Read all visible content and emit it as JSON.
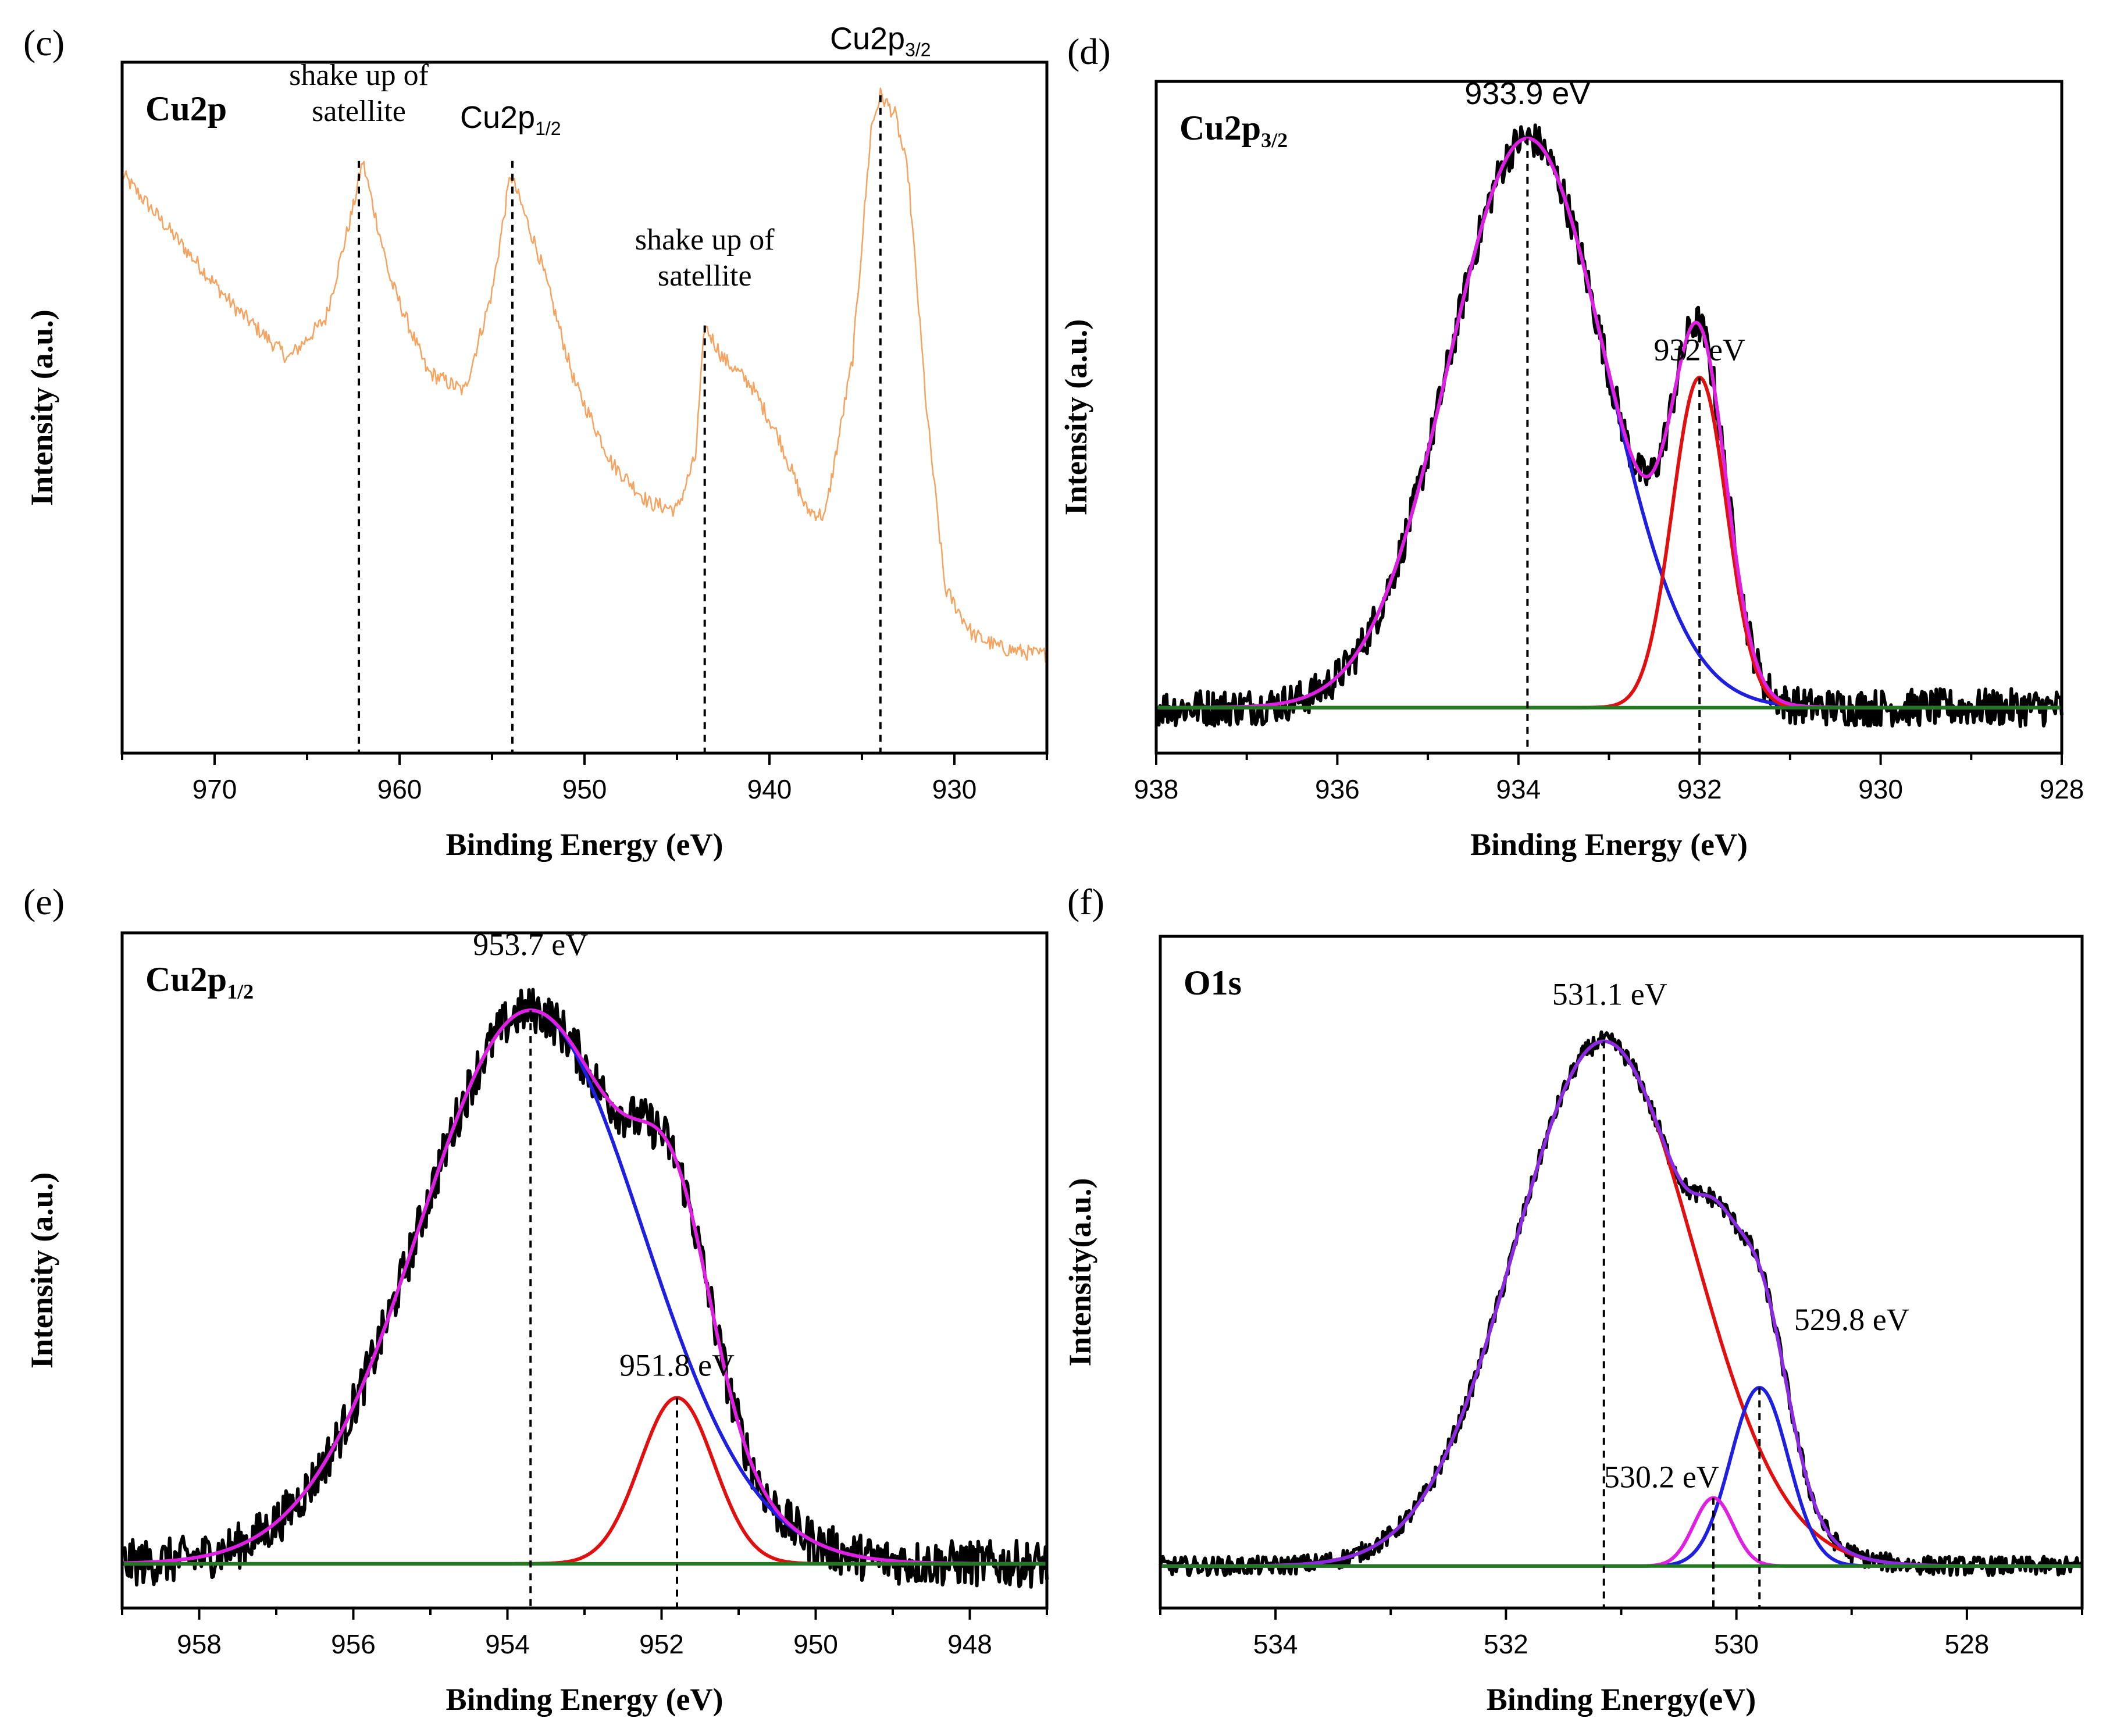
{
  "figure": {
    "panels": [
      "(c)",
      "(d)",
      "(e)",
      "(f)"
    ]
  },
  "chart_data": [
    {
      "id": "c",
      "type": "line",
      "panel_label": "(c)",
      "title": "Cu2p",
      "xlabel": "Binding Energy (eV)",
      "ylabel": "Intensity (a.u.)",
      "xlim": [
        975,
        925
      ],
      "ylim": [
        0,
        1.05
      ],
      "xticks": [
        970,
        960,
        950,
        940,
        930
      ],
      "xtick_labels": [
        "970",
        "960",
        "950",
        "940",
        "930"
      ],
      "series": [
        {
          "name": "Cu2p spectrum",
          "color": "#f4a460",
          "noise": 0.012,
          "x": [
            975,
            972,
            969,
            966,
            964,
            962.5,
            962,
            960.5,
            958.5,
            956.5,
            955,
            954,
            952.5,
            950.5,
            948.5,
            946.5,
            945,
            944,
            943.5,
            942.5,
            941,
            939.5,
            938,
            937,
            935.5,
            934.5,
            934,
            933.2,
            932.5,
            931.5,
            930.5,
            929,
            927.5,
            925.5
          ],
          "y": [
            0.88,
            0.78,
            0.68,
            0.6,
            0.66,
            0.83,
            0.9,
            0.72,
            0.58,
            0.55,
            0.7,
            0.88,
            0.76,
            0.56,
            0.44,
            0.38,
            0.37,
            0.45,
            0.65,
            0.6,
            0.56,
            0.48,
            0.37,
            0.36,
            0.6,
            0.95,
            1.0,
            0.97,
            0.88,
            0.52,
            0.25,
            0.18,
            0.16,
            0.15
          ]
        }
      ],
      "vlines": [
        {
          "x": 962.2,
          "top": 0.9
        },
        {
          "x": 953.9,
          "top": 0.9
        },
        {
          "x": 943.5,
          "top": 0.65
        },
        {
          "x": 934.0,
          "top": 1.0
        }
      ],
      "annotations": [
        {
          "lines": [
            "shake up of",
            "satellite"
          ],
          "x": 962.2,
          "y": 0.98
        },
        {
          "text": "Cu2p",
          "sub": "1/2",
          "x": 954.0,
          "y": 0.95
        },
        {
          "lines": [
            "shake up of",
            "satellite"
          ],
          "x": 943.5,
          "y": 0.73
        },
        {
          "text": "Cu2p",
          "sub": "3/2",
          "x": 934.0,
          "y": 1.07
        }
      ]
    },
    {
      "id": "d",
      "type": "line",
      "panel_label": "(d)",
      "title": "Cu2p",
      "title_sub": "3/2",
      "xlabel": "Binding Energy (eV)",
      "ylabel": "Intensity (a.u.)",
      "xlim": [
        938,
        928
      ],
      "ylim": [
        -0.08,
        1.1
      ],
      "xticks": [
        938,
        936,
        934,
        932,
        930,
        928
      ],
      "xtick_labels": [
        "938",
        "936",
        "934",
        "932",
        "930",
        "928"
      ],
      "series": [
        {
          "name": "Raw data",
          "color": "#000000",
          "noise": 0.022,
          "gauss_sum": true,
          "components": [
            [
              933.9,
              1.0,
              0.87
            ],
            [
              932.0,
              0.58,
              0.3
            ]
          ]
        },
        {
          "name": "Peak 933.9 eV",
          "color": "#1f1fe0",
          "gauss": [
            933.9,
            1.0,
            0.87
          ]
        },
        {
          "name": "Peak 932 eV",
          "color": "#e01010",
          "gauss": [
            932.0,
            0.58,
            0.3
          ]
        },
        {
          "name": "Envelope",
          "color": "#e020e0",
          "gauss_sum": true,
          "components": [
            [
              933.9,
              1.0,
              0.87
            ],
            [
              932.0,
              0.58,
              0.3
            ]
          ]
        },
        {
          "name": "Background",
          "color": "#207a20",
          "const": 0
        }
      ],
      "vlines": [
        {
          "x": 933.9,
          "top": 1.0
        },
        {
          "x": 932.0,
          "top": 0.58
        }
      ],
      "annotations": [
        {
          "text": "933.9 eV",
          "x": 933.9,
          "y": 1.06,
          "font": "sans"
        },
        {
          "text": "932 eV",
          "x": 932.0,
          "y": 0.61
        }
      ]
    },
    {
      "id": "e",
      "type": "line",
      "panel_label": "(e)",
      "title": "Cu2p",
      "title_sub": "1/2",
      "xlabel": "Binding Energy (eV)",
      "ylabel": "Intensity (a.u.)",
      "xlim": [
        959,
        947
      ],
      "ylim": [
        -0.08,
        1.14
      ],
      "xticks": [
        958,
        956,
        954,
        952,
        950,
        948
      ],
      "xtick_labels": [
        "958",
        "956",
        "954",
        "952",
        "950",
        "948"
      ],
      "series": [
        {
          "name": "Raw data",
          "color": "#000000",
          "noise": 0.028,
          "gauss_sum": true,
          "components": [
            [
              953.7,
              1.0,
              1.45
            ],
            [
              951.8,
              0.3,
              0.48
            ]
          ]
        },
        {
          "name": "Peak 953.7 eV",
          "color": "#1f1fe0",
          "gauss": [
            953.7,
            1.0,
            1.45
          ]
        },
        {
          "name": "Peak 951.8 eV",
          "color": "#e01010",
          "gauss": [
            951.8,
            0.3,
            0.48
          ]
        },
        {
          "name": "Envelope",
          "color": "#e020e0",
          "gauss_sum": true,
          "components": [
            [
              953.7,
              1.0,
              1.45
            ],
            [
              951.8,
              0.3,
              0.48
            ]
          ]
        },
        {
          "name": "Background",
          "color": "#207a20",
          "const": 0
        }
      ],
      "vlines": [
        {
          "x": 953.7,
          "top": 1.0
        },
        {
          "x": 951.8,
          "top": 0.3
        }
      ],
      "annotations": [
        {
          "text": "953.7 eV",
          "x": 953.7,
          "y": 1.1
        },
        {
          "text": "951.8 eV",
          "x": 951.8,
          "y": 0.34
        }
      ]
    },
    {
      "id": "f",
      "type": "line",
      "panel_label": "(f)",
      "title": "O1s",
      "xlabel": "Binding Energy(eV)",
      "ylabel": "Intensity(a.u.)",
      "xlim": [
        535,
        527
      ],
      "ylim": [
        -0.08,
        1.2
      ],
      "xticks": [
        534,
        532,
        530,
        528
      ],
      "xtick_labels": [
        "534",
        "532",
        "530",
        "528"
      ],
      "series": [
        {
          "name": "Raw data",
          "color": "#000000",
          "noise": 0.012,
          "gauss_sum": true,
          "components": [
            [
              531.15,
              1.0,
              0.78
            ],
            [
              529.8,
              0.34,
              0.25
            ],
            [
              530.2,
              0.13,
              0.17
            ]
          ]
        },
        {
          "name": "Peak 531.1 eV",
          "color": "#e01010",
          "gauss": [
            531.15,
            1.0,
            0.78
          ]
        },
        {
          "name": "Peak 529.8 eV",
          "color": "#1f1fe0",
          "gauss": [
            529.8,
            0.34,
            0.25
          ]
        },
        {
          "name": "Peak 530.2 eV",
          "color": "#e020e0",
          "gauss": [
            530.2,
            0.13,
            0.17
          ]
        },
        {
          "name": "Envelope",
          "color": "#8a2be2",
          "gauss_sum": true,
          "components": [
            [
              531.15,
              1.0,
              0.78
            ],
            [
              529.8,
              0.34,
              0.25
            ],
            [
              530.2,
              0.13,
              0.17
            ]
          ]
        },
        {
          "name": "Background",
          "color": "#207a20",
          "const": 0
        }
      ],
      "vlines": [
        {
          "x": 531.15,
          "top": 1.0
        },
        {
          "x": 529.8,
          "top": 0.34
        },
        {
          "x": 530.2,
          "top": 0.13
        }
      ],
      "annotations": [
        {
          "text": "531.1 eV",
          "x": 531.1,
          "y": 1.07
        },
        {
          "text": "529.8 eV",
          "x": 529.0,
          "y": 0.45
        },
        {
          "text": "530.2 eV",
          "x": 530.65,
          "y": 0.15
        }
      ]
    }
  ]
}
